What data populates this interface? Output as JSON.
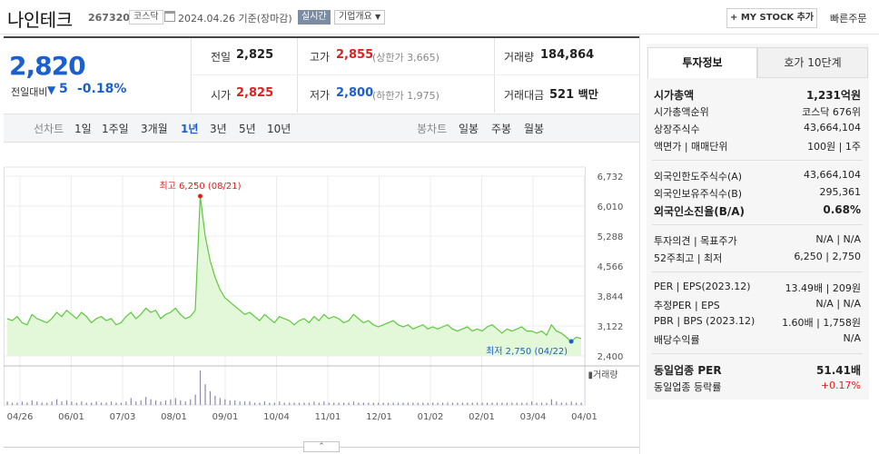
{
  "header": {
    "name": "나인테크",
    "code": "267320",
    "market": "코스닥",
    "date": "2024.04.26",
    "basis": "기준(장마감)",
    "realtime": "실시간",
    "company_info": "기업개요",
    "mystock": "+ MY STOCK 추가",
    "quick_order": "빠른주문"
  },
  "quote": {
    "price": "2,820",
    "change_label": "전일대비",
    "change_arrow": "▼",
    "change": "5",
    "change_pct": "-0.18%",
    "prev_label": "전일",
    "prev": "2,825",
    "open_label": "시가",
    "open": "2,825",
    "high_label": "고가",
    "high": "2,855",
    "upper_limit": "(상한가 3,665)",
    "low_label": "저가",
    "low": "2,800",
    "lower_limit": "(하한가 1,975)",
    "volume_label": "거래량",
    "volume": "184,864",
    "amount_label": "거래대금",
    "amount": "521",
    "amount_unit": "백만"
  },
  "periods": {
    "line_label": "선차트",
    "items": [
      "1일",
      "1주일",
      "3개월",
      "1년",
      "3년",
      "5년",
      "10년"
    ],
    "active": "1년",
    "candle_label": "봉차트",
    "candle_items": [
      "일봉",
      "주봉",
      "월봉"
    ]
  },
  "chart_data": {
    "type": "area",
    "y_ticks": [
      "6,732",
      "6,010",
      "5,288",
      "4,566",
      "3,844",
      "3,122",
      "2,400"
    ],
    "ylim": [
      2400,
      6732
    ],
    "x_ticks": [
      "04/26",
      "06/01",
      "07/03",
      "08/01",
      "09/01",
      "10/04",
      "11/01",
      "12/01",
      "01/02",
      "02/01",
      "03/04",
      "04/01"
    ],
    "max_label": "최고 6,250 (08/21)",
    "min_label": "최저 2,750 (04/22)",
    "volume_label": "거래량",
    "grid": true,
    "values": [
      3300,
      3250,
      3350,
      3200,
      3150,
      3400,
      3300,
      3250,
      3200,
      3300,
      3450,
      3350,
      3500,
      3400,
      3300,
      3450,
      3350,
      3200,
      3300,
      3350,
      3250,
      3300,
      3150,
      3200,
      3350,
      3450,
      3300,
      3400,
      3550,
      3450,
      3500,
      3300,
      3400,
      3450,
      3550,
      3400,
      3300,
      3350,
      3500,
      6250,
      5300,
      4700,
      4300,
      4000,
      3800,
      3700,
      3600,
      3500,
      3400,
      3450,
      3350,
      3250,
      3400,
      3300,
      3200,
      3350,
      3300,
      3250,
      3150,
      3250,
      3300,
      3200,
      3350,
      3250,
      3400,
      3300,
      3350,
      3300,
      3200,
      3250,
      3400,
      3300,
      3200,
      3250,
      3150,
      3100,
      3150,
      3200,
      3250,
      3150,
      3100,
      3150,
      3050,
      3100,
      3150,
      3050,
      3100,
      3050,
      3100,
      3150,
      3050,
      3000,
      3050,
      3100,
      3000,
      3050,
      3000,
      3100,
      3150,
      3050,
      2950,
      3050,
      3000,
      3050,
      3100,
      3000,
      3000,
      2950,
      3000,
      2900,
      3150,
      3000,
      2950,
      2850,
      2750,
      2850,
      2820
    ],
    "volumes": [
      3,
      2,
      2,
      3,
      2,
      4,
      3,
      2,
      2,
      3,
      5,
      3,
      4,
      3,
      2,
      3,
      2,
      2,
      3,
      2,
      2,
      3,
      2,
      2,
      3,
      6,
      3,
      4,
      7,
      5,
      4,
      3,
      4,
      5,
      6,
      4,
      3,
      5,
      9,
      30,
      18,
      12,
      8,
      6,
      5,
      4,
      4,
      3,
      3,
      3,
      2,
      2,
      3,
      2,
      2,
      3,
      2,
      2,
      2,
      2,
      2,
      2,
      3,
      2,
      3,
      2,
      2,
      2,
      2,
      2,
      3,
      2,
      2,
      2,
      2,
      2,
      2,
      2,
      2,
      2,
      2,
      2,
      2,
      2,
      2,
      2,
      2,
      2,
      2,
      2,
      2,
      2,
      2,
      2,
      2,
      2,
      2,
      2,
      2,
      2,
      2,
      2,
      2,
      2,
      2,
      2,
      3,
      2,
      2,
      2,
      5,
      3,
      2,
      2,
      3,
      2,
      2
    ]
  },
  "right": {
    "tab_active": "투자정보",
    "tab_other": "호가 10단계",
    "rows": [
      {
        "k": "시가총액",
        "v": "1,231억원",
        "bold": true
      },
      {
        "k": "시가총액순위",
        "v": "코스닥 676위"
      },
      {
        "k": "상장주식수",
        "v": "43,664,104"
      },
      {
        "k": "액면가 | 매매단위",
        "v": "100원 | 1주"
      },
      {
        "k": "외국인한도주식수(A)",
        "v": "43,664,104"
      },
      {
        "k": "외국인보유주식수(B)",
        "v": "295,361"
      },
      {
        "k": "외국인소진율(B/A)",
        "v": "0.68%",
        "bold": true
      },
      {
        "k": "투자의견 | 목표주가",
        "v": "N/A | N/A"
      },
      {
        "k": "52주최고 | 최저",
        "v": "6,250 | 2,750"
      },
      {
        "k": "PER | EPS(2023.12)",
        "v": "13.49배 | 209원"
      },
      {
        "k": "추정PER | EPS",
        "v": "N/A | N/A"
      },
      {
        "k": "PBR | BPS (2023.12)",
        "v": "1.60배 | 1,758원"
      },
      {
        "k": "배당수익률",
        "v": "N/A"
      },
      {
        "k": "동일업종 PER",
        "v": "51.41배",
        "bold": true
      },
      {
        "k": "동일업종 등락률",
        "v": "+0.17%",
        "red": true
      }
    ]
  },
  "colors": {
    "up": "#e02020",
    "down": "#1c5fcf",
    "chart_line": "#5cc93d",
    "chart_fill": "#e3f7d9"
  }
}
